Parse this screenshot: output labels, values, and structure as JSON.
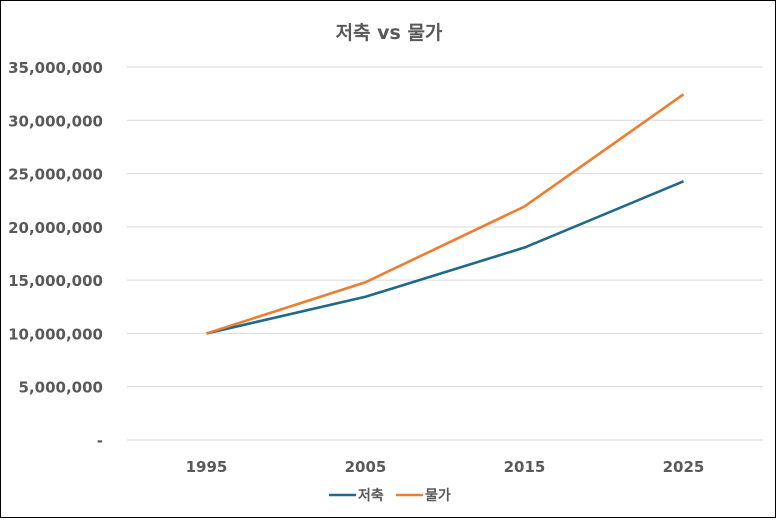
{
  "chart_data": {
    "type": "line",
    "title": "저축 vs 물가",
    "xlabel": "",
    "ylabel": "",
    "categories": [
      "1995",
      "2005",
      "2015",
      "2025"
    ],
    "series": [
      {
        "name": "저축",
        "color": "#1f6a8a",
        "values": [
          10000000,
          13439164,
          18061112,
          24272625
        ]
      },
      {
        "name": "물가",
        "color": "#ed7d31",
        "values": [
          10000000,
          14802443,
          21911231,
          32433975
        ]
      }
    ],
    "ylim": [
      0,
      35000000
    ],
    "yticks": [
      0,
      5000000,
      10000000,
      15000000,
      20000000,
      25000000,
      30000000,
      35000000
    ],
    "ytick_labels": [
      "-",
      "5,000,000",
      "10,000,000",
      "15,000,000",
      "20,000,000",
      "25,000,000",
      "30,000,000",
      "35,000,000"
    ],
    "grid": true,
    "legend_position": "bottom"
  }
}
